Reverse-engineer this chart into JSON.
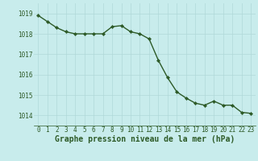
{
  "x": [
    0,
    1,
    2,
    3,
    4,
    5,
    6,
    7,
    8,
    9,
    10,
    11,
    12,
    13,
    14,
    15,
    16,
    17,
    18,
    19,
    20,
    21,
    22,
    23
  ],
  "y": [
    1018.9,
    1018.6,
    1018.3,
    1018.1,
    1018.0,
    1018.0,
    1018.0,
    1018.0,
    1018.35,
    1018.4,
    1018.1,
    1018.0,
    1017.75,
    1016.7,
    1015.85,
    1015.15,
    1014.85,
    1014.6,
    1014.5,
    1014.7,
    1014.5,
    1014.5,
    1014.15,
    1014.1
  ],
  "line_color": "#2d5a27",
  "marker_color": "#2d5a27",
  "bg_color": "#c8ecec",
  "grid_color": "#b0d8d8",
  "xlabel": "Graphe pression niveau de la mer (hPa)",
  "xlabel_color": "#2d5a27",
  "ylim": [
    1013.5,
    1019.5
  ],
  "yticks": [
    1014,
    1015,
    1016,
    1017,
    1018,
    1019
  ],
  "xticks": [
    0,
    1,
    2,
    3,
    4,
    5,
    6,
    7,
    8,
    9,
    10,
    11,
    12,
    13,
    14,
    15,
    16,
    17,
    18,
    19,
    20,
    21,
    22,
    23
  ],
  "tick_color": "#2d5a27",
  "tick_fontsize": 5.5,
  "xlabel_fontsize": 7.0,
  "line_width": 1.0,
  "marker_size": 2.2
}
